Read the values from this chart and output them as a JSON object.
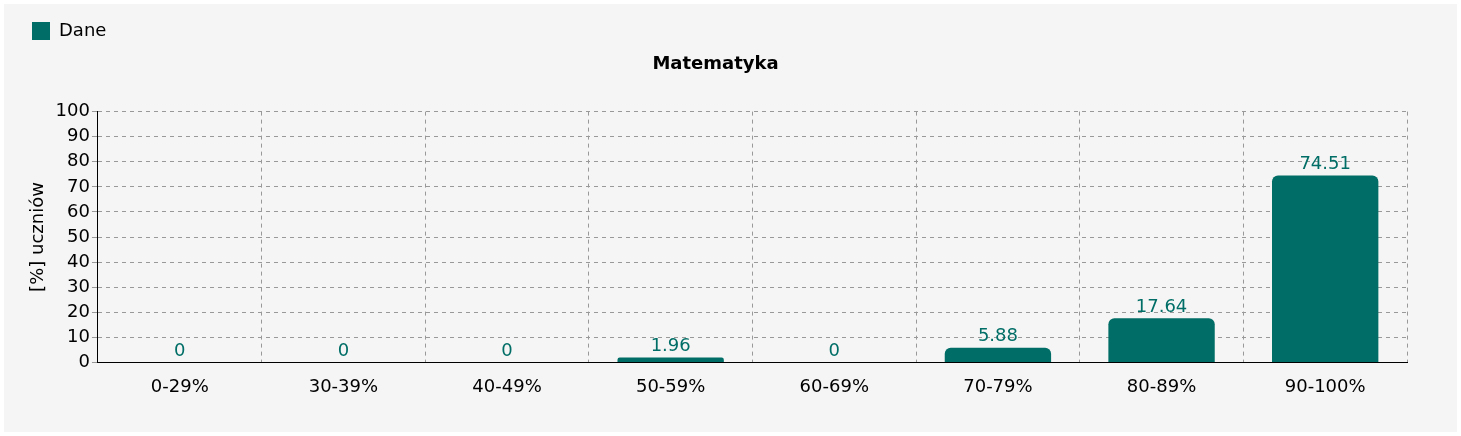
{
  "chart_data": {
    "type": "bar",
    "title": "Matematyka",
    "ylabel": "[%] uczniów",
    "categories": [
      "0-29%",
      "30-39%",
      "40-49%",
      "50-59%",
      "60-69%",
      "70-79%",
      "80-89%",
      "90-100%"
    ],
    "series": [
      {
        "name": "Dane",
        "color": "#006e66",
        "values": [
          0,
          0,
          0,
          1.96,
          0,
          5.88,
          17.64,
          74.51
        ]
      }
    ],
    "ylim": [
      0,
      100
    ],
    "yticks": [
      0,
      10,
      20,
      30,
      40,
      50,
      60,
      70,
      80,
      90,
      100
    ],
    "grid": true,
    "legend": "top left",
    "data_labels": true
  }
}
